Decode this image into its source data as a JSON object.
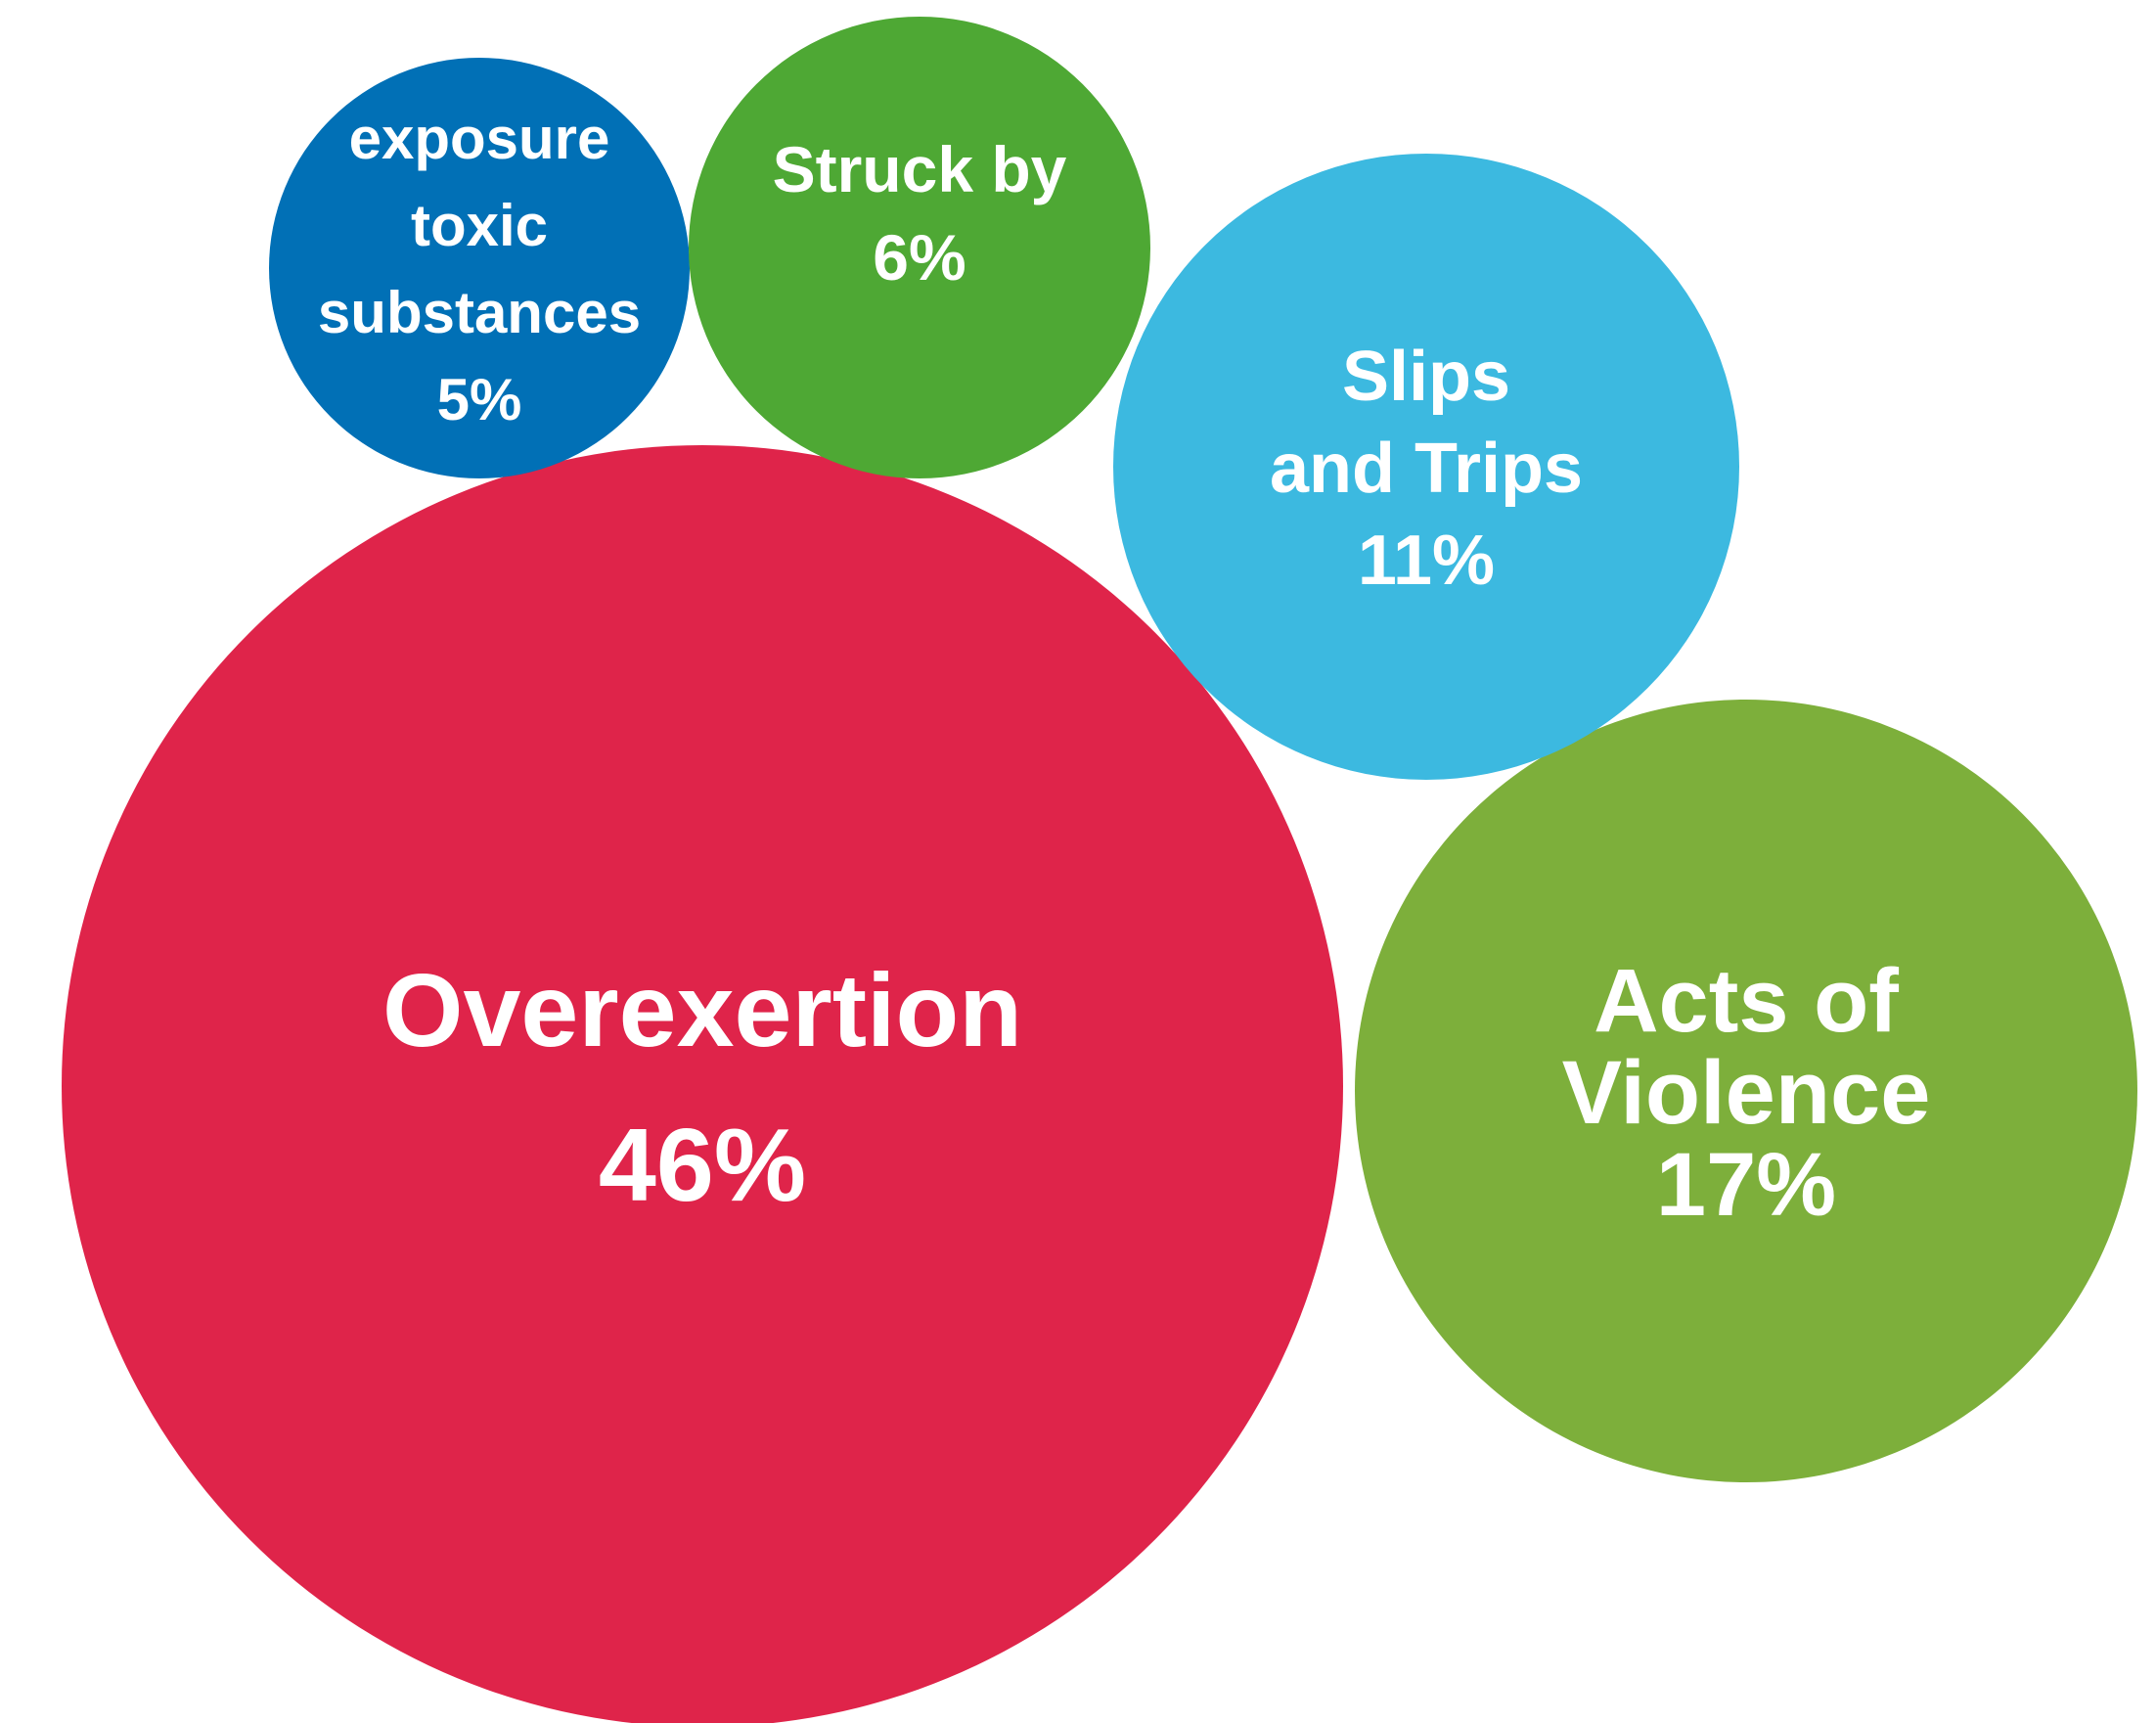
{
  "chart_data": {
    "type": "bubble",
    "title": "",
    "series": [
      {
        "id": "overexertion",
        "label_lines": [
          "Overexertion"
        ],
        "value_label": "46%",
        "value": 46,
        "color": "#df244a"
      },
      {
        "id": "acts-of-violence",
        "label_lines": [
          "Acts of",
          "Violence"
        ],
        "value_label": "17%",
        "value": 17,
        "color": "#7daf3b"
      },
      {
        "id": "slips-and-trips",
        "label_lines": [
          "Slips",
          "and Trips"
        ],
        "value_label": "11%",
        "value": 11,
        "color": "#3cb9e0"
      },
      {
        "id": "struck-by",
        "label_lines": [
          "Struck by"
        ],
        "value_label": "6%",
        "value": 6,
        "color": "#4ea834"
      },
      {
        "id": "exposure-toxic-substances",
        "label_lines": [
          "exposure",
          "toxic",
          "substances"
        ],
        "value_label": "5%",
        "value": 5,
        "color": "#0170b6"
      }
    ]
  }
}
